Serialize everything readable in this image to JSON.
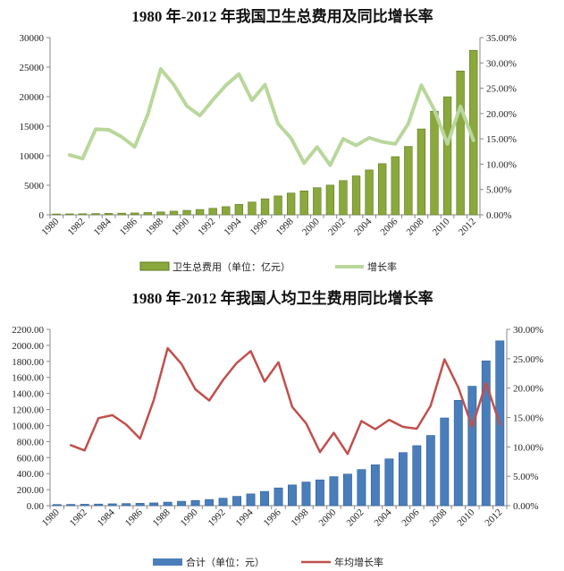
{
  "chart_data": [
    {
      "type": "bar",
      "title": "1980 年-2012 年我国卫生总费用及同比增长率",
      "categories": [
        "1980",
        "1981",
        "1982",
        "1983",
        "1984",
        "1985",
        "1986",
        "1987",
        "1988",
        "1989",
        "1990",
        "1991",
        "1992",
        "1993",
        "1994",
        "1995",
        "1996",
        "1997",
        "1998",
        "1999",
        "2000",
        "2001",
        "2002",
        "2003",
        "2004",
        "2005",
        "2006",
        "2007",
        "2008",
        "2009",
        "2010",
        "2011",
        "2012"
      ],
      "xtick_labels": [
        "1980",
        "1982",
        "1984",
        "1986",
        "1988",
        "1990",
        "1992",
        "1994",
        "1996",
        "1998",
        "2000",
        "2002",
        "2004",
        "2006",
        "2008",
        "2010",
        "2012"
      ],
      "series": [
        {
          "name": "卫生总费用（单位：亿元）",
          "type": "bar",
          "axis": "left",
          "values": [
            143,
            160,
            177,
            207,
            242,
            279,
            316,
            379,
            488,
            615,
            747,
            893,
            1096,
            1378,
            1761,
            2155,
            2709,
            3197,
            3679,
            4048,
            4587,
            5025,
            5790,
            6584,
            7590,
            8660,
            9843,
            11574,
            14535,
            17542,
            19980,
            24346,
            27847
          ]
        },
        {
          "name": "增长率",
          "type": "line",
          "axis": "right",
          "values": [
            null,
            11.8,
            11.1,
            16.9,
            16.8,
            15.4,
            13.4,
            19.8,
            28.8,
            25.7,
            21.5,
            19.6,
            22.7,
            25.6,
            27.8,
            22.6,
            25.7,
            18.0,
            15.1,
            10.2,
            13.4,
            9.8,
            15.0,
            13.7,
            15.2,
            14.4,
            14.0,
            18.0,
            25.6,
            20.7,
            14.0,
            21.4,
            14.7
          ]
        }
      ],
      "left_axis": {
        "ticks": [
          "0",
          "5000",
          "10000",
          "15000",
          "20000",
          "25000",
          "30000"
        ],
        "ylim": [
          0,
          30000
        ]
      },
      "right_axis": {
        "ticks": [
          "0.00%",
          "5.00%",
          "10.00%",
          "15.00%",
          "20.00%",
          "25.00%",
          "30.00%",
          "35.00%"
        ],
        "ylim": [
          0,
          35
        ]
      },
      "colors": {
        "bar": "#8aa83c",
        "bar_dark": "#5e7a1e",
        "line": "#b9d79b"
      },
      "legend_position": "bottom"
    },
    {
      "type": "bar",
      "title": "1980 年-2012 年我国人均卫生费用同比增长率",
      "categories": [
        "1980",
        "1981",
        "1982",
        "1983",
        "1984",
        "1985",
        "1986",
        "1987",
        "1988",
        "1989",
        "1990",
        "1991",
        "1992",
        "1993",
        "1994",
        "1995",
        "1996",
        "1997",
        "1998",
        "1999",
        "2000",
        "2001",
        "2002",
        "2003",
        "2004",
        "2005",
        "2006",
        "2007",
        "2008",
        "2009",
        "2010",
        "2011",
        "2012"
      ],
      "xtick_labels": [
        "1980",
        "1982",
        "1984",
        "1986",
        "1988",
        "1990",
        "1992",
        "1994",
        "1996",
        "1998",
        "2000",
        "2002",
        "2004",
        "2006",
        "2008",
        "2010",
        "2012"
      ],
      "series": [
        {
          "name": "合计（单位：元）",
          "type": "bar",
          "axis": "left",
          "values": [
            14.5,
            16.0,
            17.5,
            20.1,
            23.2,
            26.4,
            29.4,
            34.7,
            44.0,
            54.6,
            65.4,
            77.1,
            93.6,
            116.3,
            146.9,
            177.9,
            221.4,
            258.6,
            294.9,
            321.8,
            361.9,
            393.8,
            450.7,
            509.5,
            583.9,
            662.3,
            748.8,
            876.0,
            1094.5,
            1314.3,
            1490.1,
            1807.0,
            2056.6
          ]
        },
        {
          "name": "年均增长率",
          "type": "line",
          "axis": "right",
          "values": [
            null,
            10.3,
            9.4,
            14.9,
            15.4,
            13.8,
            11.4,
            18.0,
            26.8,
            24.1,
            19.8,
            17.9,
            21.4,
            24.3,
            26.3,
            21.1,
            24.4,
            16.8,
            14.0,
            9.1,
            12.4,
            8.8,
            14.4,
            13.0,
            14.6,
            13.4,
            13.1,
            17.0,
            24.9,
            20.1,
            13.4,
            20.9,
            13.8
          ]
        }
      ],
      "left_axis": {
        "ticks": [
          "0.00",
          "200.00",
          "400.00",
          "600.00",
          "800.00",
          "1000.00",
          "1200.00",
          "1400.00",
          "1600.00",
          "1800.00",
          "2000.00",
          "2200.00"
        ],
        "ylim": [
          0,
          2200
        ]
      },
      "right_axis": {
        "ticks": [
          "0.00%",
          "5.00%",
          "10.00%",
          "15.00%",
          "20.00%",
          "25.00%",
          "30.00%"
        ],
        "ylim": [
          0,
          30
        ]
      },
      "colors": {
        "bar": "#4a7ebb",
        "bar_dark": "#2f5f97",
        "line": "#c0504d"
      },
      "legend_position": "bottom"
    }
  ]
}
